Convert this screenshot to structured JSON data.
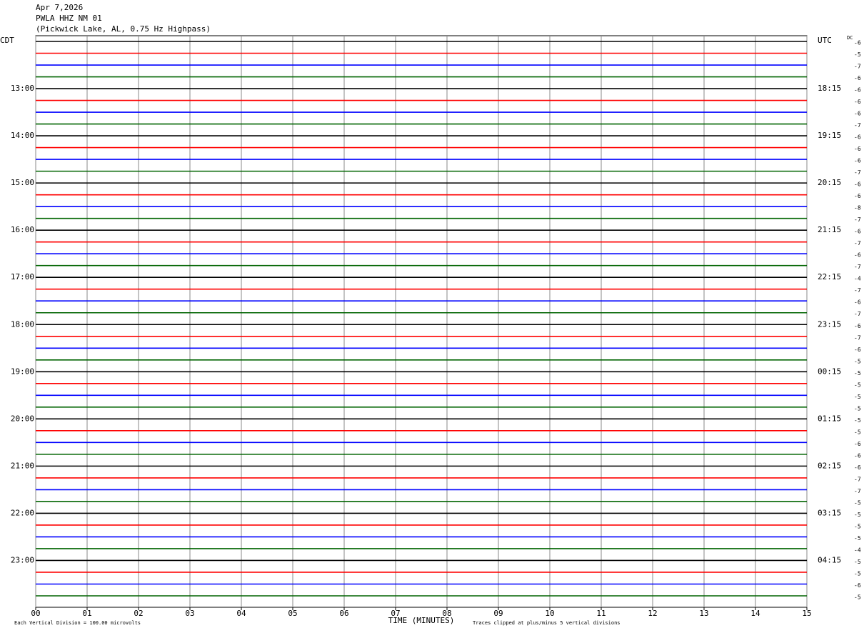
{
  "chart_data": {
    "type": "helicorder",
    "title_lines": [
      "Apr 7,2026",
      "PWLA HHZ NM 01",
      "(Pickwick Lake, AL, 0.75 Hz Highpass)"
    ],
    "left_axis_title": "CDT",
    "right_axis_title": "UTC",
    "dc_title": "DC",
    "x_label": "TIME (MINUTES)",
    "scale_note": "Each Vertical Division =  100.00 microvolts",
    "clip_note": "Traces clipped at plus/minus 5 vertical divisions",
    "xlim": [
      0,
      15
    ],
    "xticks": [
      {
        "value": 0,
        "label": "00"
      },
      {
        "value": 1,
        "label": "01"
      },
      {
        "value": 2,
        "label": "02"
      },
      {
        "value": 3,
        "label": "03"
      },
      {
        "value": 4,
        "label": "04"
      },
      {
        "value": 5,
        "label": "05"
      },
      {
        "value": 6,
        "label": "06"
      },
      {
        "value": 7,
        "label": "07"
      },
      {
        "value": 8,
        "label": "08"
      },
      {
        "value": 9,
        "label": "09"
      },
      {
        "value": 10,
        "label": "10"
      },
      {
        "value": 11,
        "label": "11"
      },
      {
        "value": 12,
        "label": "12"
      },
      {
        "value": 13,
        "label": "13"
      },
      {
        "value": 14,
        "label": "14"
      },
      {
        "value": 15,
        "label": "15"
      }
    ],
    "grid": true,
    "trace_colors": [
      "#000000",
      "#ff0000",
      "#0000ff",
      "#006400"
    ],
    "left_labels": [
      null,
      null,
      null,
      null,
      "13:00",
      null,
      null,
      null,
      "14:00",
      null,
      null,
      null,
      "15:00",
      null,
      null,
      null,
      "16:00",
      null,
      null,
      null,
      "17:00",
      null,
      null,
      null,
      "18:00",
      null,
      null,
      null,
      "19:00",
      null,
      null,
      null,
      "20:00",
      null,
      null,
      null,
      "21:00",
      null,
      null,
      null,
      "22:00",
      null,
      null,
      null,
      "23:00",
      null,
      null,
      null
    ],
    "right_labels": [
      null,
      null,
      null,
      null,
      "18:15",
      null,
      null,
      null,
      "19:15",
      null,
      null,
      null,
      "20:15",
      null,
      null,
      null,
      "21:15",
      null,
      null,
      null,
      "22:15",
      null,
      null,
      null,
      "23:15",
      null,
      null,
      null,
      "00:15",
      null,
      null,
      null,
      "01:15",
      null,
      null,
      null,
      "02:15",
      null,
      null,
      null,
      "03:15",
      null,
      null,
      null,
      "04:15",
      null,
      null,
      null
    ],
    "dc_offsets": [
      -6,
      -5,
      -7,
      -6,
      -6,
      -6,
      -6,
      -7,
      -6,
      -6,
      -6,
      -7,
      -6,
      -6,
      -8,
      -7,
      -6,
      -7,
      -6,
      -7,
      -4,
      -7,
      -6,
      -7,
      -6,
      -7,
      -6,
      -5,
      -5,
      -5,
      -5,
      -5,
      -5,
      -5,
      -6,
      -6,
      -6,
      -7,
      -7,
      -5,
      -5,
      -5,
      -5,
      -4,
      -5,
      -5,
      -6,
      -5
    ]
  }
}
